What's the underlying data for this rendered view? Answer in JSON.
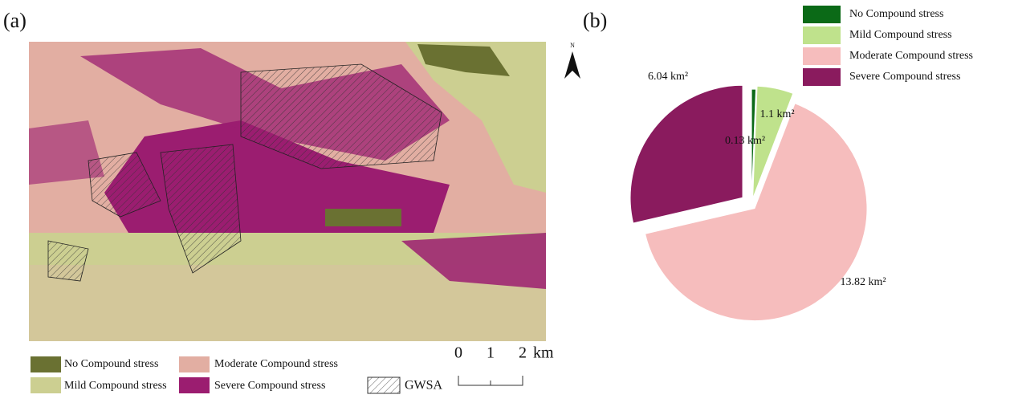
{
  "panel_a": {
    "label": "(a)",
    "north": "N",
    "legend": [
      "No Compound stress",
      "Moderate Compound stress",
      "Mild Compound stress",
      "Severe Compound stress"
    ],
    "gwsa": "GWSA",
    "scale_ticks": [
      "0",
      "1",
      "2"
    ],
    "scale_unit": "km"
  },
  "chart_data": {
    "type": "pie",
    "label": "(b)",
    "categories": [
      "No Compound stress",
      "Mild Compound stress",
      "Moderate Compound stress",
      "Severe Compound stress"
    ],
    "values": [
      0.13,
      1.1,
      13.82,
      6.04
    ],
    "value_labels": [
      "0.13 km²",
      "1.1 km²",
      "13.82 km²",
      "6.04 km²"
    ],
    "colors": [
      "#0b6a17",
      "#bfe28c",
      "#f6bdbd",
      "#8a1b5e"
    ]
  }
}
